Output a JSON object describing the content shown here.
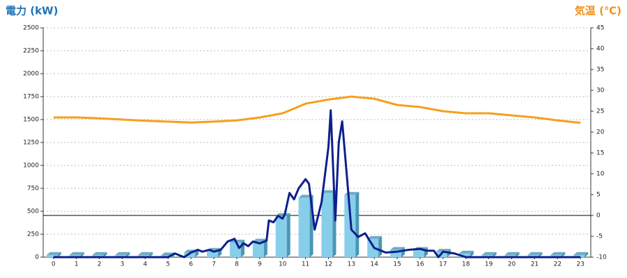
{
  "chart_data": {
    "type": "combo",
    "y_label": "電力 (kW)",
    "y2_label": "気温 (℃)",
    "y_label_color": "#1c74b8",
    "y2_label_color": "#f0901a",
    "categories": [
      "0",
      "1",
      "2",
      "3",
      "4",
      "5",
      "6",
      "7",
      "8",
      "9",
      "10",
      "11",
      "12",
      "13",
      "14",
      "15",
      "16",
      "17",
      "18",
      "19",
      "20",
      "21",
      "22",
      "23"
    ],
    "xlim": [
      -0.45,
      23.45
    ],
    "ylim": [
      0,
      2500
    ],
    "yticks": [
      0,
      250,
      500,
      750,
      1000,
      1250,
      1500,
      1750,
      2000,
      2250,
      2500
    ],
    "y2lim": [
      -10,
      45
    ],
    "y2ticks": [
      -10,
      -5,
      0,
      5,
      10,
      15,
      20,
      25,
      30,
      35,
      40,
      45
    ],
    "grid": true,
    "y2_zero_line": true,
    "series": [
      {
        "type": "bar",
        "color": "#87ceeb",
        "side_color": "#4a96b6",
        "values": [
          25,
          25,
          25,
          25,
          25,
          20,
          50,
          70,
          160,
          170,
          450,
          650,
          700,
          680,
          200,
          80,
          80,
          60,
          40,
          25,
          25,
          25,
          25,
          25
        ]
      },
      {
        "type": "line",
        "color": "#0d1f8c",
        "x": [
          0,
          1,
          2,
          3,
          4,
          5,
          5.3,
          5.7,
          6,
          6.3,
          6.5,
          6.8,
          7,
          7.3,
          7.6,
          7.9,
          8.1,
          8.3,
          8.5,
          8.7,
          9,
          9.3,
          9.4,
          9.6,
          9.8,
          10,
          10.1,
          10.3,
          10.5,
          10.7,
          11,
          11.15,
          11.4,
          11.7,
          12,
          12.1,
          12.3,
          12.45,
          12.6,
          12.8,
          13,
          13.3,
          13.6,
          14,
          14.5,
          15,
          15.5,
          16,
          16.3,
          16.6,
          16.8,
          17,
          17.5,
          18,
          19,
          20,
          21,
          22,
          23
        ],
        "values": [
          0,
          0,
          0,
          0,
          0,
          0,
          40,
          0,
          50,
          80,
          60,
          80,
          60,
          80,
          170,
          200,
          100,
          150,
          120,
          170,
          150,
          180,
          400,
          380,
          450,
          420,
          470,
          700,
          630,
          750,
          850,
          800,
          300,
          600,
          1200,
          1600,
          400,
          1250,
          1480,
          900,
          300,
          220,
          260,
          100,
          50,
          60,
          80,
          90,
          70,
          70,
          0,
          60,
          40,
          0,
          0,
          0,
          0,
          0,
          0
        ]
      },
      {
        "type": "line",
        "axis": "y2",
        "color": "#f5a01a",
        "values": [
          23.5,
          23.5,
          23.3,
          23.0,
          22.7,
          22.5,
          22.3,
          22.5,
          22.8,
          23.5,
          24.5,
          26.8,
          27.8,
          28.5,
          28.0,
          26.5,
          26.0,
          25.0,
          24.5,
          24.5,
          24.0,
          23.5,
          22.8,
          22.2
        ]
      }
    ]
  }
}
